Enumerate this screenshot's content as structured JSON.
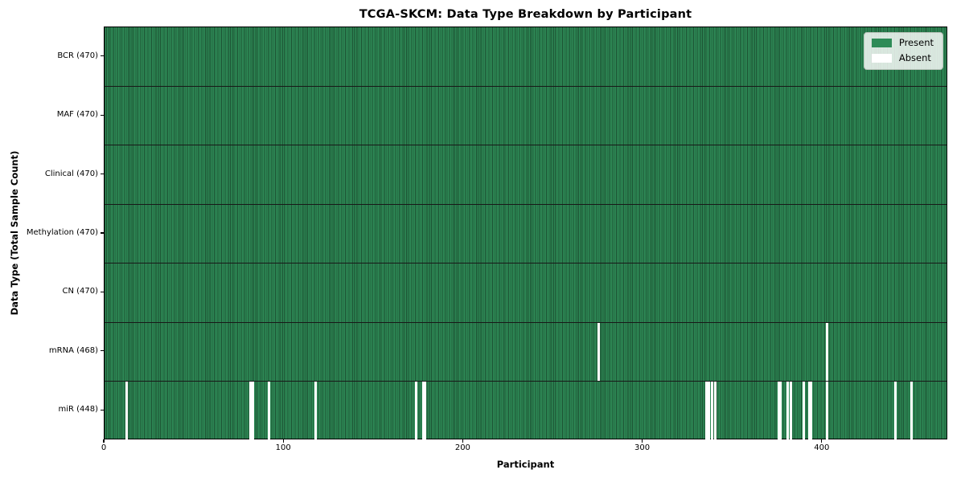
{
  "chart_data": {
    "type": "heatmap",
    "title": "TCGA-SKCM: Data Type Breakdown by Participant",
    "xlabel": "Participant",
    "ylabel": "Data Type (Total Sample Count)",
    "n_participants": 470,
    "x_ticks": [
      0,
      100,
      200,
      300,
      400
    ],
    "grid": false,
    "colors": {
      "present": "#2e8b57",
      "present_edge": "#1c5132",
      "absent": "#ffffff",
      "row_divider": "#181818",
      "axis": "#000000"
    },
    "legend": {
      "position": "upper right",
      "items": [
        {
          "label": "Present",
          "color": "#2e8b57"
        },
        {
          "label": "Absent",
          "color": "#ffffff"
        }
      ]
    },
    "rows": [
      {
        "data_type": "BCR",
        "label": "BCR (470)",
        "present_count": 470,
        "absent_participants": []
      },
      {
        "data_type": "MAF",
        "label": "MAF (470)",
        "present_count": 470,
        "absent_participants": []
      },
      {
        "data_type": "Clinical",
        "label": "Clinical (470)",
        "present_count": 470,
        "absent_participants": []
      },
      {
        "data_type": "Methylation",
        "label": "Methylation (470)",
        "present_count": 470,
        "absent_participants": []
      },
      {
        "data_type": "CN",
        "label": "CN (470)",
        "present_count": 470,
        "absent_participants": []
      },
      {
        "data_type": "mRNA",
        "label": "mRNA (468)",
        "present_count": 468,
        "absent_participants": [
          275,
          402
        ]
      },
      {
        "data_type": "miR",
        "label": "miR (448)",
        "present_count": 448,
        "absent_participants": [
          12,
          81,
          82,
          91,
          117,
          173,
          177,
          178,
          335,
          336,
          338,
          340,
          375,
          376,
          380,
          382,
          389,
          392,
          393,
          402,
          440,
          449
        ]
      }
    ]
  }
}
